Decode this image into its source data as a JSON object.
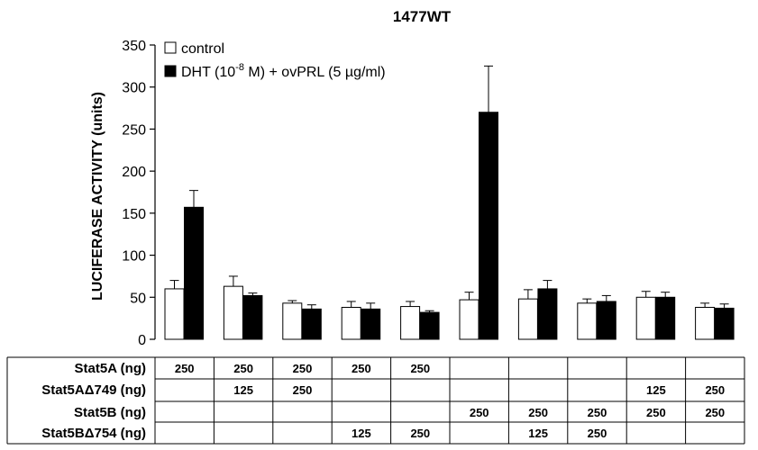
{
  "chart_data": {
    "type": "bar",
    "title": "1477WT",
    "ylabel": "LUCIFERASE ACTIVITY (units)",
    "ylim": [
      0,
      350
    ],
    "yticks": [
      0,
      50,
      100,
      150,
      200,
      250,
      300,
      350
    ],
    "legend": {
      "position": "top-left",
      "entries": [
        {
          "name": "control",
          "color": "#ffffff"
        },
        {
          "name_parts": [
            "DHT (10",
            "-8",
            " M) + ovPRL (5 ",
            "µ",
            "g/ml)"
          ],
          "color": "#000000"
        }
      ]
    },
    "series": [
      {
        "name": "control",
        "values": [
          60,
          63,
          43,
          38,
          39,
          47,
          48,
          43,
          50,
          38
        ],
        "errors": [
          10,
          12,
          3,
          7,
          6,
          9,
          11,
          5,
          7,
          5
        ]
      },
      {
        "name": "DHT (10-8 M) + ovPRL (5 µg/ml)",
        "values": [
          157,
          52,
          36,
          36,
          32,
          270,
          60,
          45,
          50,
          37
        ],
        "errors": [
          20,
          3,
          5,
          7,
          2,
          55,
          10,
          7,
          6,
          5
        ]
      }
    ],
    "table": {
      "rows": [
        {
          "label": "Stat5A (ng)",
          "cells": [
            "250",
            "250",
            "250",
            "250",
            "250",
            "",
            "",
            "",
            "",
            ""
          ]
        },
        {
          "label": "Stat5AΔ749 (ng)",
          "cells": [
            "",
            "125",
            "250",
            "",
            "",
            "",
            "",
            "",
            "125",
            "250"
          ]
        },
        {
          "label": "Stat5B (ng)",
          "cells": [
            "",
            "",
            "",
            "",
            "",
            "250",
            "250",
            "250",
            "250",
            "250"
          ]
        },
        {
          "label": "Stat5BΔ754 (ng)",
          "cells": [
            "",
            "",
            "",
            "125",
            "250",
            "",
            "125",
            "250",
            "",
            ""
          ]
        }
      ]
    }
  }
}
